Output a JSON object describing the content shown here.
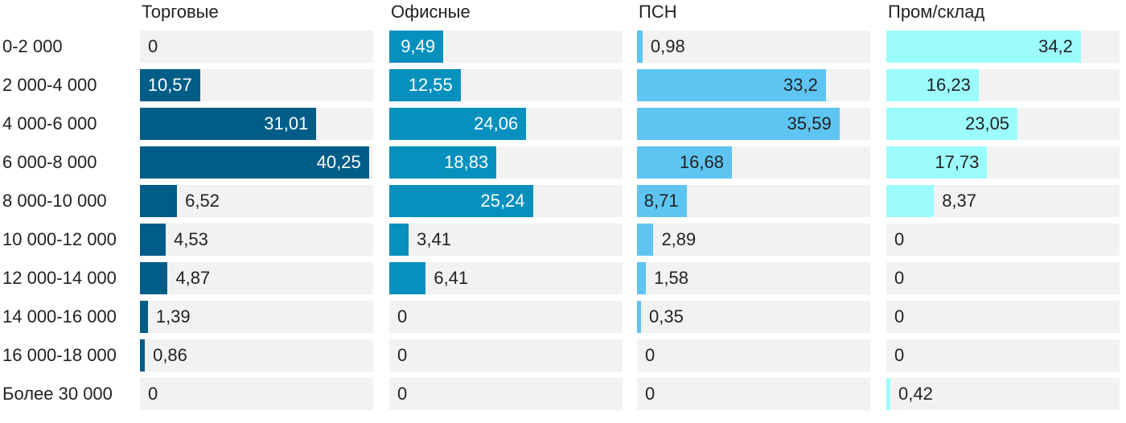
{
  "chart_data": {
    "type": "bar",
    "orientation": "horizontal",
    "layout": "small-multiples",
    "categories": [
      "0-2 000",
      "2 000-4 000",
      "4 000-6 000",
      "6 000-8 000",
      "8 000-10 000",
      "10 000-12 000",
      "12 000-14 000",
      "14 000-16 000",
      "16 000-18 000",
      "Более 30 000"
    ],
    "xlim": [
      0,
      41
    ],
    "series": [
      {
        "name": "Торговые",
        "color": "#005d87",
        "label_color_inside": "#ffffff",
        "values": [
          0,
          10.57,
          31.01,
          40.25,
          6.52,
          4.53,
          4.87,
          1.39,
          0.86,
          0
        ],
        "labels": [
          "0",
          "10,57",
          "31,01",
          "40,25",
          "6,52",
          "4,53",
          "4,87",
          "1,39",
          "0,86",
          "0"
        ]
      },
      {
        "name": "Офисные",
        "color": "#0590be",
        "label_color_inside": "#ffffff",
        "values": [
          9.49,
          12.55,
          24.06,
          18.83,
          25.24,
          3.41,
          6.41,
          0,
          0,
          0
        ],
        "labels": [
          "9,49",
          "12,55",
          "24,06",
          "18,83",
          "25,24",
          "3,41",
          "6,41",
          "0",
          "0",
          "0"
        ]
      },
      {
        "name": "ПСН",
        "color": "#5ec5f2",
        "label_color_inside": "#222222",
        "values": [
          0.98,
          33.2,
          35.59,
          16.68,
          8.71,
          2.89,
          1.58,
          0.35,
          0,
          0
        ],
        "labels": [
          "0,98",
          "33,2",
          "35,59",
          "16,68",
          "8,71",
          "2,89",
          "1,58",
          "0,35",
          "0",
          "0"
        ]
      },
      {
        "name": "Пром/склад",
        "color": "#9cfcfd",
        "label_color_inside": "#222222",
        "values": [
          34.2,
          16.23,
          23.05,
          17.73,
          8.37,
          0,
          0,
          0,
          0,
          0.42
        ],
        "labels": [
          "34,2",
          "16,23",
          "23,05",
          "17,73",
          "8,37",
          "0",
          "0",
          "0",
          "0",
          "0,42"
        ]
      }
    ],
    "value_text_color": "#222222",
    "track_color": "#f2f2f2",
    "grid": false,
    "legend": "none"
  }
}
